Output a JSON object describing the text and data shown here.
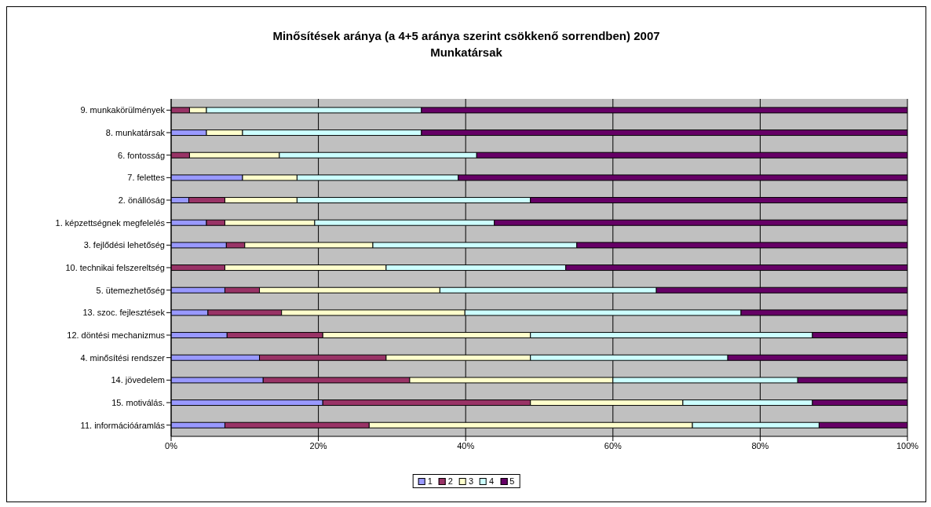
{
  "chart_data": {
    "type": "bar",
    "orientation": "horizontal",
    "stacked": true,
    "title": "Minősítések aránya (a 4+5 aránya szerint csökkenő sorrendben) 2007",
    "subtitle": "Munkatársak",
    "categories": [
      "9. munkakörülmények",
      "8. munkatársak",
      "6. fontosság",
      "7. felettes",
      "2. önállóság",
      "1. képzettségnek megfelelés",
      "3. fejlődési lehetőség",
      "10. technikai felszereltség",
      "5. ütemezhetőség",
      "13. szoc. fejlesztések",
      "12. döntési mechanizmus",
      "4. minősítési rendszer",
      "14. jövedelem",
      "15. motiválás.",
      "11. információáramlás"
    ],
    "series": [
      {
        "name": "1",
        "color": "#9999ff",
        "values": [
          0,
          4.8,
          0,
          9.7,
          2.4,
          4.8,
          7.5,
          0,
          7.3,
          5,
          7.6,
          12,
          12.5,
          20.6,
          7.3
        ]
      },
      {
        "name": "2",
        "color": "#993366",
        "values": [
          2.5,
          0,
          2.5,
          0,
          4.9,
          2.5,
          2.5,
          7.3,
          4.7,
          10,
          13,
          17.2,
          19.9,
          28.2,
          19.6
        ]
      },
      {
        "name": "3",
        "color": "#ffffcc",
        "values": [
          2.3,
          4.9,
          12.2,
          7.4,
          9.8,
          12.2,
          17.4,
          21.9,
          24.5,
          24.9,
          28.2,
          19.6,
          27.6,
          20.7,
          43.9
        ]
      },
      {
        "name": "4",
        "color": "#ccffff",
        "values": [
          29.2,
          24.3,
          26.8,
          21.9,
          31.7,
          24.4,
          27.7,
          24.4,
          29.4,
          37.5,
          38.3,
          26.8,
          25.1,
          17.6,
          17.2
        ]
      },
      {
        "name": "5",
        "color": "#660066",
        "values": [
          66,
          66,
          58.5,
          61,
          51.2,
          56.1,
          44.9,
          46.4,
          34.1,
          22.6,
          12.9,
          24.4,
          14.9,
          12.9,
          12
        ]
      }
    ],
    "xlim": [
      0,
      100
    ],
    "xticks": [
      {
        "value": 0,
        "label": "0%"
      },
      {
        "value": 20,
        "label": "20%"
      },
      {
        "value": 40,
        "label": "40%"
      },
      {
        "value": 60,
        "label": "60%"
      },
      {
        "value": 80,
        "label": "80%"
      },
      {
        "value": 100,
        "label": "100%"
      }
    ],
    "grid": "x",
    "legend": "bottom"
  }
}
